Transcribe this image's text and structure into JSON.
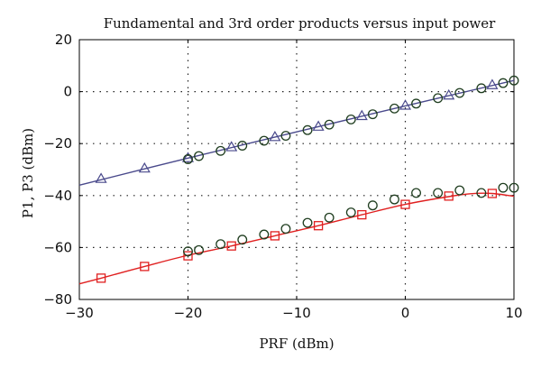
{
  "chart_data": {
    "type": "line",
    "title": "Fundamental and 3rd order products versus input power",
    "xlabel": "PRF (dBm)",
    "ylabel": "P1, P3 (dBm)",
    "xlim": [
      -30,
      10
    ],
    "ylim": [
      -80,
      20
    ],
    "xticks": [
      -30,
      -20,
      -10,
      0,
      10
    ],
    "yticks": [
      -80,
      -60,
      -40,
      -20,
      0,
      20
    ],
    "xtick_labels": [
      "−30",
      "−20",
      "−10",
      "0",
      "10"
    ],
    "ytick_labels": [
      "−80",
      "−60",
      "−40",
      "−20",
      "0",
      "20"
    ],
    "grid": true,
    "series": [
      {
        "marker": "triangle",
        "color": "#4a4a8c",
        "curve": {
          "x": [
            -30,
            -20,
            -10,
            0,
            10
          ],
          "y": [
            -36,
            -25.6,
            -15.5,
            -5.5,
            4.3
          ]
        },
        "points": {
          "x": [
            -28,
            -24,
            -20,
            -16,
            -12,
            -8,
            -4,
            0,
            4,
            8
          ],
          "y": [
            -33.5,
            -29.5,
            -25.5,
            -21.3,
            -17.4,
            -13.4,
            -9.3,
            -5.3,
            -1.4,
            2.6
          ]
        }
      },
      {
        "marker": "square",
        "color": "#e02020",
        "curve": {
          "x": [
            -30,
            -28,
            -24,
            -20,
            -16,
            -12,
            -8,
            -4,
            0,
            4,
            6,
            8,
            10
          ],
          "y": [
            -74,
            -71.8,
            -67.3,
            -63,
            -59.4,
            -55.5,
            -51.6,
            -47.4,
            -43.4,
            -40.4,
            -39.3,
            -39.2,
            -40.3
          ]
        },
        "points": {
          "x": [
            -28,
            -24,
            -20,
            -16,
            -12,
            -8,
            -4,
            0,
            4,
            8
          ],
          "y": [
            -71.8,
            -67.3,
            -63.2,
            -59.4,
            -55.5,
            -51.6,
            -47.4,
            -43.4,
            -40.2,
            -39.2
          ]
        }
      },
      {
        "marker": "circle",
        "color": "#1f3d1f",
        "points": {
          "x": [
            -20,
            -19,
            -17,
            -15,
            -13,
            -11,
            -9,
            -7,
            -5,
            -3,
            -1,
            1,
            3,
            5,
            7,
            9,
            10
          ],
          "y": [
            -26,
            -24.8,
            -22.8,
            -20.8,
            -18.9,
            -17,
            -14.8,
            -12.7,
            -10.7,
            -8.7,
            -6.5,
            -4.6,
            -2.5,
            -0.5,
            1.3,
            3.3,
            4.3
          ]
        }
      },
      {
        "marker": "circle",
        "color": "#1f3d1f",
        "points": {
          "x": [
            -20,
            -19,
            -17,
            -15,
            -13,
            -11,
            -9,
            -7,
            -5,
            -3,
            -1,
            1,
            3,
            5,
            7,
            9,
            10
          ],
          "y": [
            -61.5,
            -61,
            -58.7,
            -57,
            -55,
            -52.8,
            -50.5,
            -48.5,
            -46.5,
            -43.8,
            -41.5,
            -39,
            -39,
            -38,
            -39,
            -37,
            -37
          ]
        }
      }
    ]
  }
}
